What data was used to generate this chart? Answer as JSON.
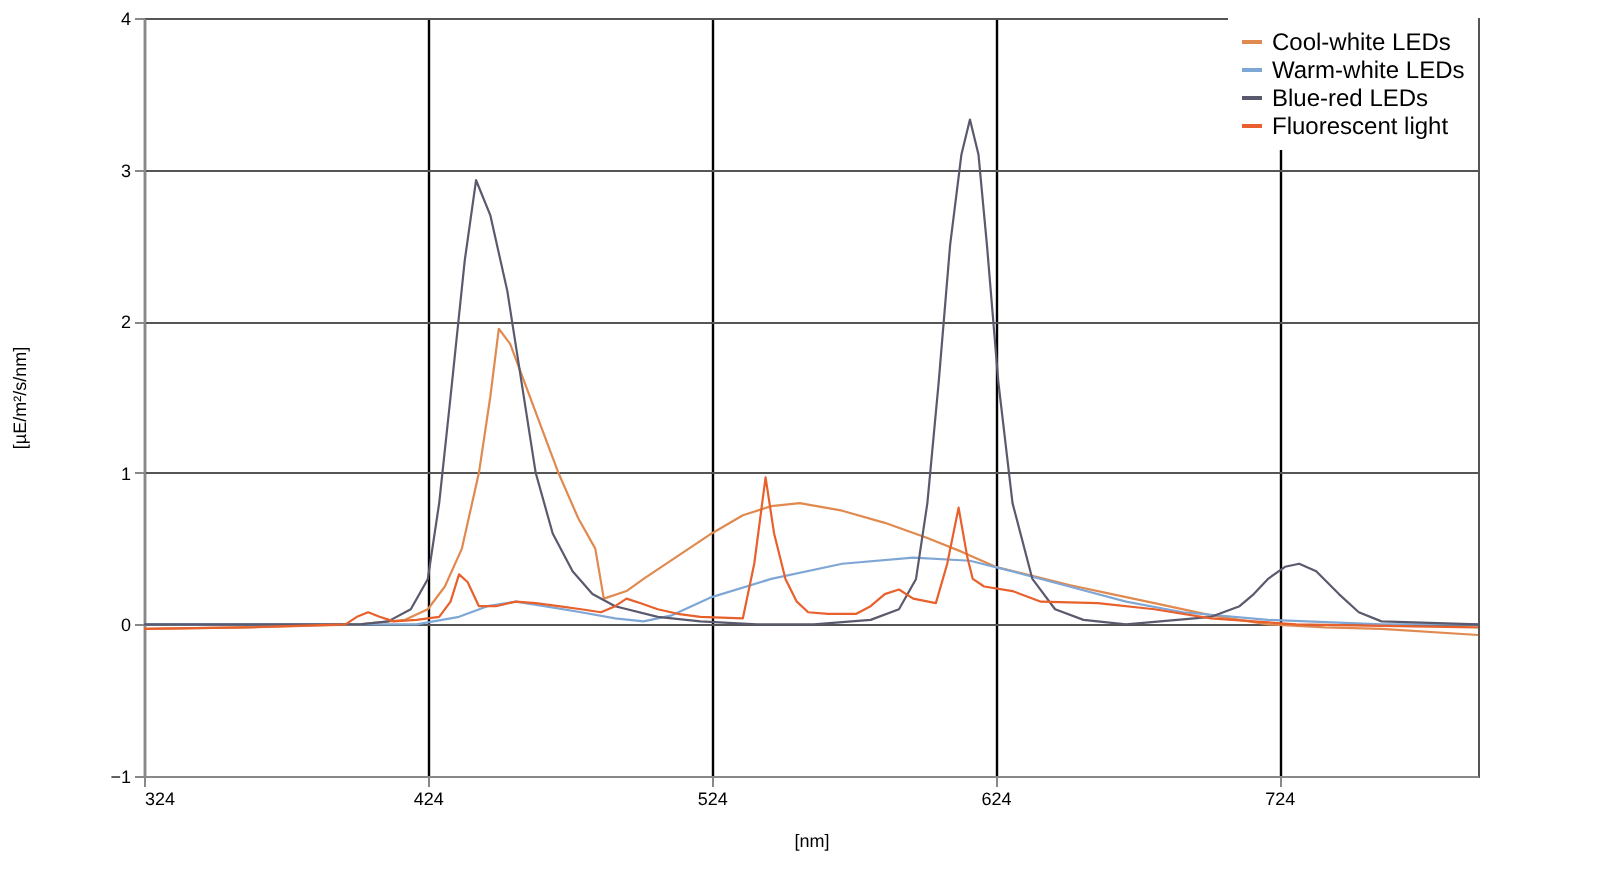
{
  "chart_data": {
    "type": "line",
    "xlabel": "[nm]",
    "ylabel": "[µE/m²/s/nm]",
    "xlim": [
      324,
      794
    ],
    "xticks": [
      324,
      424,
      524,
      624,
      724
    ],
    "ylim": [
      -1,
      4
    ],
    "yticks": [
      -1,
      0,
      1,
      2,
      3,
      4
    ],
    "grid": true,
    "legend": "top right",
    "line_style": "solid",
    "marker": "none",
    "series": [
      {
        "name": "Cool-white LEDs",
        "color": "#e08a50",
        "x": [
          324,
          360,
          400,
          416,
          424,
          430,
          436,
          442,
          446,
          449,
          453,
          458,
          464,
          470,
          477,
          483,
          486,
          494,
          500,
          512,
          524,
          535,
          545,
          555,
          570,
          585,
          600,
          612,
          624,
          637,
          650,
          665,
          680,
          700,
          720,
          740,
          760,
          794
        ],
        "values": [
          -0.03,
          -0.02,
          0,
          0.03,
          0.1,
          0.25,
          0.5,
          1.0,
          1.5,
          1.95,
          1.85,
          1.6,
          1.3,
          1.0,
          0.7,
          0.5,
          0.17,
          0.22,
          0.3,
          0.45,
          0.6,
          0.72,
          0.78,
          0.8,
          0.75,
          0.67,
          0.57,
          0.48,
          0.38,
          0.32,
          0.26,
          0.2,
          0.14,
          0.06,
          0.0,
          -0.02,
          -0.03,
          -0.07
        ]
      },
      {
        "name": "Warm-white LEDs",
        "color": "#7fa7d6",
        "x": [
          324,
          400,
          420,
          435,
          445,
          455,
          465,
          478,
          490,
          500,
          510,
          524,
          545,
          570,
          595,
          615,
          630,
          650,
          670,
          690,
          720,
          760,
          794
        ],
        "values": [
          0,
          0,
          0,
          0.05,
          0.12,
          0.15,
          0.12,
          0.08,
          0.04,
          0.02,
          0.06,
          0.18,
          0.3,
          0.4,
          0.44,
          0.42,
          0.35,
          0.25,
          0.15,
          0.08,
          0.03,
          0,
          0
        ]
      },
      {
        "name": "Blue-red LEDs",
        "color": "#5a5a6e",
        "x": [
          324,
          400,
          410,
          418,
          424,
          428,
          432,
          437,
          441,
          446,
          452,
          457,
          462,
          468,
          475,
          482,
          490,
          505,
          520,
          540,
          560,
          580,
          590,
          596,
          600,
          604,
          608,
          612,
          615,
          618,
          621,
          625,
          630,
          637,
          645,
          655,
          670,
          700,
          710,
          715,
          720,
          726,
          731,
          737,
          745,
          752,
          760,
          794
        ],
        "values": [
          0,
          0,
          0.02,
          0.1,
          0.3,
          0.8,
          1.5,
          2.4,
          2.93,
          2.7,
          2.2,
          1.6,
          1.0,
          0.6,
          0.35,
          0.2,
          0.12,
          0.05,
          0.02,
          0,
          0,
          0.03,
          0.1,
          0.3,
          0.8,
          1.6,
          2.5,
          3.1,
          3.33,
          3.1,
          2.5,
          1.6,
          0.8,
          0.3,
          0.1,
          0.03,
          0,
          0.05,
          0.12,
          0.2,
          0.3,
          0.38,
          0.4,
          0.35,
          0.2,
          0.08,
          0.02,
          0
        ]
      },
      {
        "name": "Fluorescent light",
        "color": "#e8602c",
        "x": [
          324,
          360,
          395,
          399,
          403,
          407,
          412,
          420,
          428,
          432,
          435,
          438,
          442,
          448,
          455,
          462,
          470,
          478,
          485,
          490,
          494,
          499,
          505,
          512,
          520,
          535,
          539,
          543,
          546,
          550,
          554,
          558,
          565,
          575,
          580,
          585,
          590,
          595,
          603,
          607,
          611,
          614,
          616,
          620,
          630,
          640,
          660,
          680,
          700,
          715,
          730,
          760,
          794
        ],
        "values": [
          -0.03,
          -0.02,
          0,
          0.05,
          0.08,
          0.05,
          0.02,
          0.03,
          0.05,
          0.15,
          0.33,
          0.28,
          0.12,
          0.12,
          0.15,
          0.14,
          0.12,
          0.1,
          0.08,
          0.12,
          0.17,
          0.14,
          0.1,
          0.07,
          0.05,
          0.04,
          0.4,
          0.97,
          0.6,
          0.3,
          0.15,
          0.08,
          0.07,
          0.07,
          0.12,
          0.2,
          0.23,
          0.17,
          0.14,
          0.4,
          0.77,
          0.45,
          0.3,
          0.25,
          0.22,
          0.15,
          0.14,
          0.1,
          0.04,
          0.02,
          0,
          -0.01,
          -0.02
        ]
      }
    ]
  }
}
